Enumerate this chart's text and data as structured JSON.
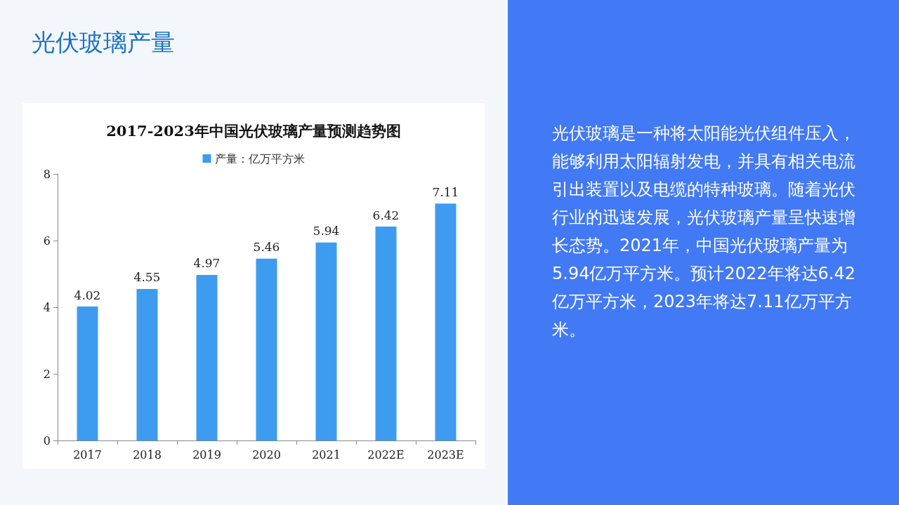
{
  "chart_data": {
    "type": "bar",
    "title": "2017-2023年中国光伏玻璃产量预测趋势图",
    "categories": [
      "2017",
      "2018",
      "2019",
      "2020",
      "2021",
      "2022E",
      "2023E"
    ],
    "series": [
      {
        "name": "产量：亿万平方米",
        "color": "#3d9cf0",
        "values": [
          4.02,
          4.55,
          4.97,
          5.46,
          5.94,
          6.42,
          7.11
        ]
      }
    ],
    "ylim": [
      0,
      8
    ],
    "yticks": [
      0,
      2,
      4,
      6,
      8
    ],
    "data_labels": true,
    "legend": "top",
    "annotations": [
      "光伏玻璃产量",
      "光伏玻璃是一种将太阳能光伏组件压入，能够利用太阳辐射发电，并具有相关电流引出装置以及电缆的特种玻璃。随着光伏行业的迅速发展，光伏玻璃产量呈快速增长态势。2021年，中国光伏玻璃产量为5.94亿万平方米。预计2022年将达6.42亿万平方米，2023年将达7.11亿万平方米。"
    ]
  }
}
